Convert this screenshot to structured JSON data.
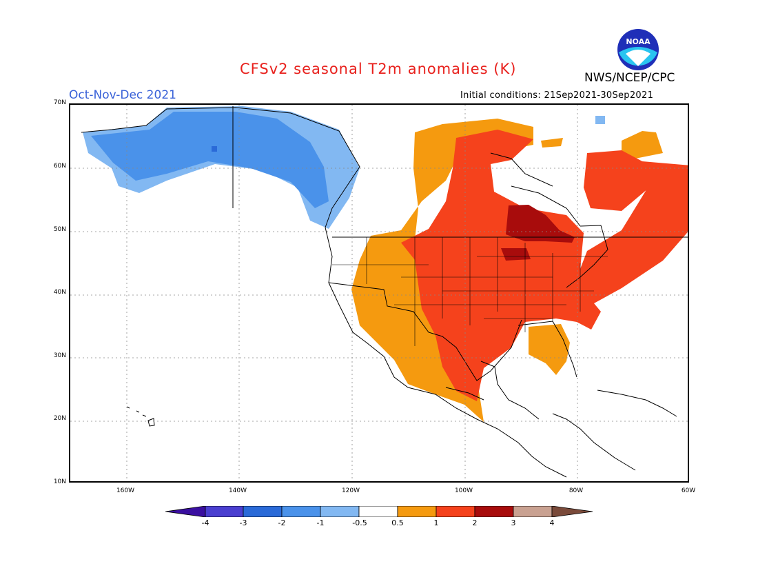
{
  "title": "CFSv2 seasonal T2m anomalies (K)",
  "period": "Oct-Nov-Dec 2021",
  "agency": "NWS/NCEP/CPC",
  "initial_conditions": "Initial conditions: 21Sep2021-30Sep2021",
  "logo_text": "NOAA",
  "lat_labels": [
    "70N",
    "60N",
    "50N",
    "40N",
    "30N",
    "20N",
    "10N"
  ],
  "lon_labels": [
    "160W",
    "140W",
    "120W",
    "100W",
    "80W",
    "60W"
  ],
  "colorbar": {
    "labels": [
      "-4",
      "-3",
      "-2",
      "-1",
      "-0.5",
      "0.5",
      "1",
      "2",
      "3",
      "4"
    ],
    "colors": [
      "#3a0fa0",
      "#4a3fd0",
      "#2a6ad8",
      "#4a92ea",
      "#82b8f2",
      "#ffffff",
      "#f59a0f",
      "#f5421c",
      "#a80c0c",
      "#c9a191",
      "#7a4a3a"
    ]
  },
  "regions": {
    "cold_blue": "#4a92ea",
    "cold_light": "#82b8f2",
    "warm_orange": "#f59a0f",
    "warm_red": "#f5421c",
    "hot_darkred": "#a80c0c"
  }
}
